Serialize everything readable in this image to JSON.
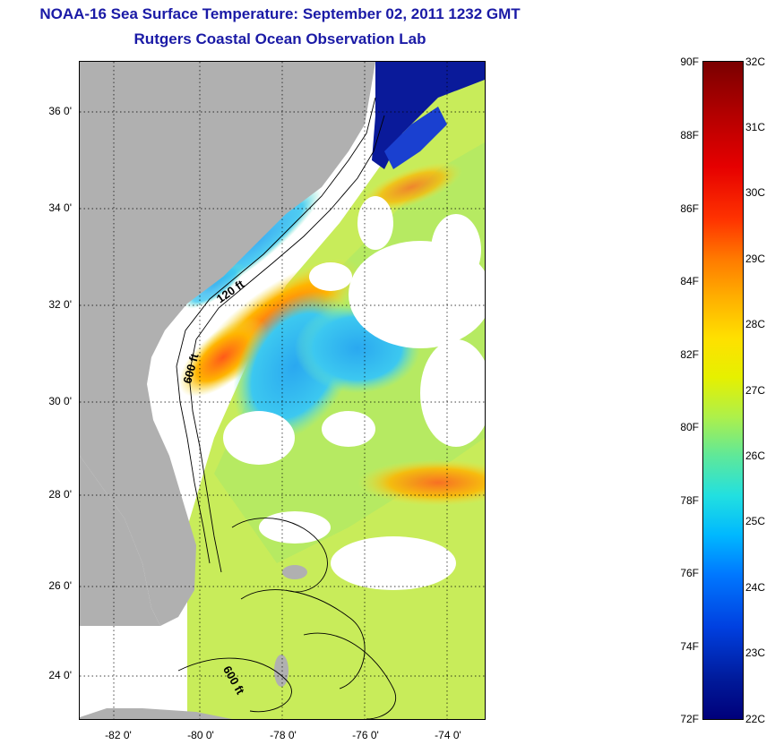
{
  "title": {
    "line1": "NOAA-16 Sea Surface Temperature:  September 02, 2011 1232 GMT",
    "line2": "Rutgers Coastal Ocean Observation Lab"
  },
  "map": {
    "lat_labels": [
      "36 0'",
      "34 0'",
      "32 0'",
      "30 0'",
      "28 0'",
      "26 0'",
      "24 0'"
    ],
    "lon_labels": [
      "-82 0'",
      "-80 0'",
      "-78 0'",
      "-76 0'",
      "-74 0'"
    ],
    "contour_labels": [
      "120 ft",
      "600 ft",
      "600 ft"
    ],
    "colors": {
      "land": "#b0b0b0",
      "cloud": "#ffffff",
      "contour": "#000000"
    }
  },
  "colorbar": {
    "fahrenheit": [
      "90F",
      "88F",
      "86F",
      "84F",
      "82F",
      "80F",
      "78F",
      "76F",
      "74F",
      "72F"
    ],
    "celsius": [
      "32C",
      "31C",
      "30C",
      "29C",
      "28C",
      "27C",
      "26C",
      "25C",
      "24C",
      "23C",
      "22C"
    ]
  }
}
